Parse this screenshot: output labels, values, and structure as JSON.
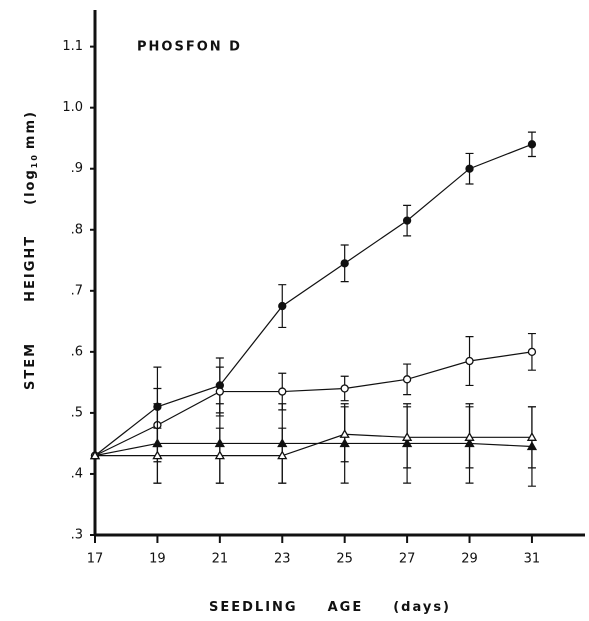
{
  "chart_data": {
    "type": "line",
    "title": "PHOSFON D",
    "xlabel": [
      "SEEDLING",
      "AGE",
      "(days)"
    ],
    "ylabel": [
      "STEM",
      "HEIGHT",
      "(log",
      "10",
      "mm)"
    ],
    "xlim": [
      17,
      32.7
    ],
    "ylim": [
      0.3,
      1.16
    ],
    "xticks": [
      17,
      19,
      21,
      23,
      25,
      27,
      29,
      31
    ],
    "yticks": [
      {
        "value": 0.3,
        "label": ".3"
      },
      {
        "value": 0.4,
        "label": ".4"
      },
      {
        "value": 0.5,
        "label": ".5"
      },
      {
        "value": 0.6,
        "label": ".6"
      },
      {
        "value": 0.7,
        "label": ".7"
      },
      {
        "value": 0.8,
        "label": ".8"
      },
      {
        "value": 0.9,
        "label": ".9"
      },
      {
        "value": 1.0,
        "label": "1.0"
      },
      {
        "value": 1.1,
        "label": "1.1"
      }
    ],
    "x": [
      17,
      19,
      21,
      23,
      25,
      27,
      29,
      31
    ],
    "series": [
      {
        "marker": "filled-circle",
        "color": "#111111",
        "values": [
          0.43,
          0.51,
          0.545,
          0.675,
          0.745,
          0.815,
          0.9,
          0.94
        ],
        "errors": [
          0,
          0.065,
          0.045,
          0.035,
          0.03,
          0.025,
          0.025,
          0.02
        ]
      },
      {
        "marker": "open-circle",
        "color": "#111111",
        "values": [
          0.43,
          0.48,
          0.535,
          0.535,
          0.54,
          0.555,
          0.585,
          0.6
        ],
        "errors": [
          0,
          0.06,
          0.04,
          0.03,
          0.02,
          0.025,
          0.04,
          0.03
        ]
      },
      {
        "marker": "filled-triangle",
        "color": "#111111",
        "values": [
          0.43,
          0.45,
          0.45,
          0.45,
          0.45,
          0.45,
          0.45,
          0.445
        ],
        "errors": [
          0,
          0.065,
          0.065,
          0.065,
          0.065,
          0.065,
          0.065,
          0.065
        ]
      },
      {
        "marker": "open-triangle",
        "color": "#111111",
        "values": [
          0.43,
          0.43,
          0.43,
          0.43,
          0.465,
          0.46,
          0.46,
          0.46
        ],
        "errors": [
          0,
          0.045,
          0.045,
          0.045,
          0.045,
          0.05,
          0.05,
          0.05
        ]
      }
    ]
  }
}
